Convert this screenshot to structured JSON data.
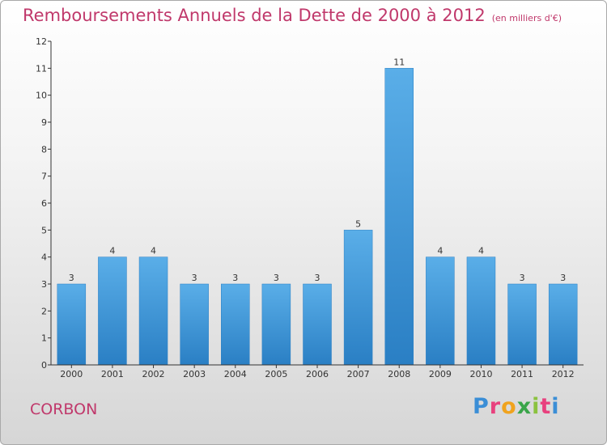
{
  "header": {
    "title": "Remboursements Annuels de la Dette de 2000 à 2012",
    "subtitle": "(en milliers d'€)"
  },
  "footer": {
    "town": "CORBON",
    "logo_text": "Proxiti",
    "logo_colors": [
      "#3b8ed6",
      "#e8417e",
      "#f0a31e",
      "#3aa54a",
      "#8bc23f",
      "#e8417e",
      "#3b8ed6"
    ]
  },
  "colors": {
    "title": "#c0386b",
    "bar_light": "#5aaee8",
    "bar_dark": "#2a7fc4",
    "axis": "#333333"
  },
  "chart_data": {
    "type": "bar",
    "title": "Remboursements Annuels de la Dette de 2000 à 2012",
    "subtitle": "(en milliers d'€)",
    "categories": [
      "2000",
      "2001",
      "2002",
      "2003",
      "2004",
      "2005",
      "2006",
      "2007",
      "2008",
      "2009",
      "2010",
      "2011",
      "2012"
    ],
    "values": [
      3,
      4,
      4,
      3,
      3,
      3,
      3,
      5,
      11,
      4,
      4,
      3,
      3
    ],
    "yticks": [
      0,
      1,
      2,
      3,
      4,
      5,
      6,
      7,
      8,
      9,
      10,
      11,
      12
    ],
    "ylim": [
      0,
      12
    ],
    "grid": false,
    "data_labels": true
  }
}
